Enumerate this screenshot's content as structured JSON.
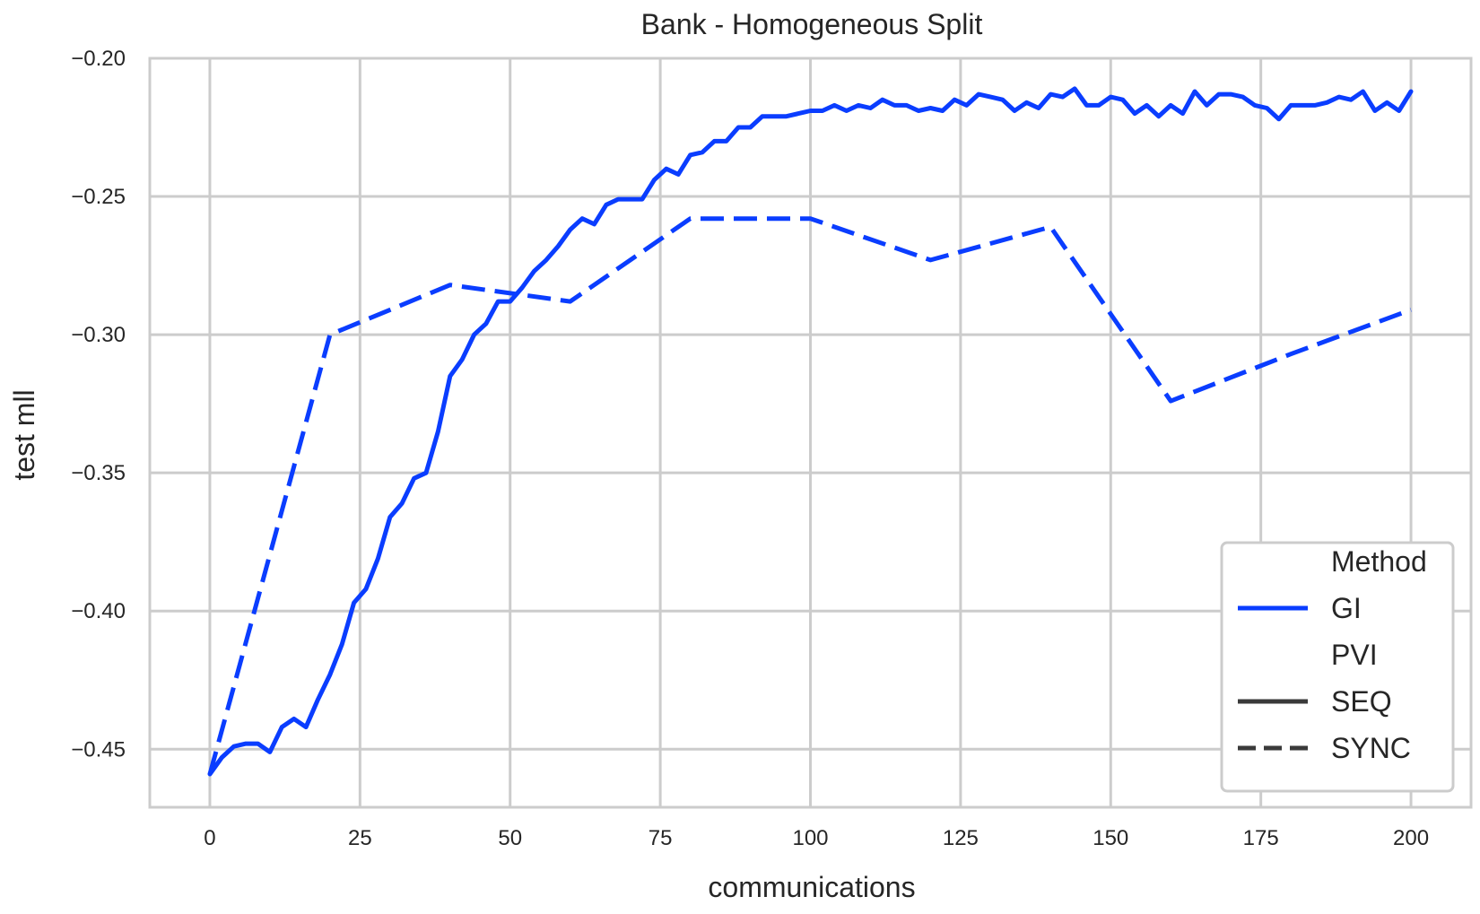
{
  "chart_data": {
    "type": "line",
    "title": "Bank - Homogeneous Split",
    "xlabel": "communications",
    "ylabel": "test mll",
    "xlim": [
      -10,
      210
    ],
    "ylim": [
      -0.471,
      -0.2
    ],
    "x_ticks": [
      0,
      25,
      50,
      75,
      100,
      125,
      150,
      175,
      200
    ],
    "x_tick_labels": [
      "0",
      "25",
      "50",
      "75",
      "100",
      "125",
      "150",
      "175",
      "200"
    ],
    "y_ticks": [
      -0.2,
      -0.25,
      -0.3,
      -0.35,
      -0.4,
      -0.45
    ],
    "y_tick_labels": [
      "−0.20",
      "−0.25",
      "−0.30",
      "−0.35",
      "−0.40",
      "−0.45"
    ],
    "grid": true,
    "legend": {
      "placement": "lower-right",
      "entries": [
        {
          "label": "Method",
          "kind": "header"
        },
        {
          "label": "GI",
          "kind": "color"
        },
        {
          "label": "PVI",
          "kind": "header"
        },
        {
          "label": "SEQ",
          "kind": "solid"
        },
        {
          "label": "SYNC",
          "kind": "dashed"
        }
      ]
    },
    "colors": {
      "series": "#0a3dff",
      "legend_style": "#3a3a3a",
      "grid": "#cccccc",
      "frame": "#cccccc"
    },
    "series": [
      {
        "name": "SEQ",
        "style": "solid",
        "x": [
          0,
          2,
          4,
          6,
          8,
          10,
          12,
          14,
          16,
          18,
          20,
          22,
          24,
          26,
          28,
          30,
          32,
          34,
          36,
          38,
          40,
          42,
          44,
          46,
          48,
          50,
          52,
          54,
          56,
          58,
          60,
          62,
          64,
          66,
          68,
          70,
          72,
          74,
          76,
          78,
          80,
          82,
          84,
          86,
          88,
          90,
          92,
          94,
          96,
          98,
          100,
          102,
          104,
          106,
          108,
          110,
          112,
          114,
          116,
          118,
          120,
          122,
          124,
          126,
          128,
          130,
          132,
          134,
          136,
          138,
          140,
          142,
          144,
          146,
          148,
          150,
          152,
          154,
          156,
          158,
          160,
          162,
          164,
          166,
          168,
          170,
          172,
          174,
          176,
          178,
          180,
          182,
          184,
          186,
          188,
          190,
          192,
          194,
          196,
          198,
          200
        ],
        "y": [
          -0.459,
          -0.453,
          -0.449,
          -0.448,
          -0.448,
          -0.451,
          -0.442,
          -0.439,
          -0.442,
          -0.432,
          -0.423,
          -0.412,
          -0.397,
          -0.392,
          -0.381,
          -0.366,
          -0.361,
          -0.352,
          -0.35,
          -0.335,
          -0.315,
          -0.309,
          -0.3,
          -0.296,
          -0.288,
          -0.288,
          -0.283,
          -0.277,
          -0.273,
          -0.268,
          -0.262,
          -0.258,
          -0.26,
          -0.253,
          -0.251,
          -0.251,
          -0.251,
          -0.244,
          -0.24,
          -0.242,
          -0.235,
          -0.234,
          -0.23,
          -0.23,
          -0.225,
          -0.225,
          -0.221,
          -0.221,
          -0.221,
          -0.22,
          -0.219,
          -0.219,
          -0.217,
          -0.219,
          -0.217,
          -0.218,
          -0.215,
          -0.217,
          -0.217,
          -0.219,
          -0.218,
          -0.219,
          -0.215,
          -0.217,
          -0.213,
          -0.214,
          -0.215,
          -0.219,
          -0.216,
          -0.218,
          -0.213,
          -0.214,
          -0.211,
          -0.217,
          -0.217,
          -0.214,
          -0.215,
          -0.22,
          -0.217,
          -0.221,
          -0.217,
          -0.22,
          -0.212,
          -0.217,
          -0.213,
          -0.213,
          -0.214,
          -0.217,
          -0.218,
          -0.222,
          -0.217,
          -0.217,
          -0.217,
          -0.216,
          -0.214,
          -0.215,
          -0.212,
          -0.219,
          -0.216,
          -0.219,
          -0.212
        ]
      },
      {
        "name": "SYNC",
        "style": "dashed",
        "x": [
          0,
          20,
          40,
          60,
          80,
          100,
          120,
          140,
          160,
          180,
          200
        ],
        "y": [
          -0.459,
          -0.3,
          -0.282,
          -0.288,
          -0.258,
          -0.258,
          -0.273,
          -0.261,
          -0.324,
          -0.307,
          -0.291
        ]
      }
    ]
  }
}
